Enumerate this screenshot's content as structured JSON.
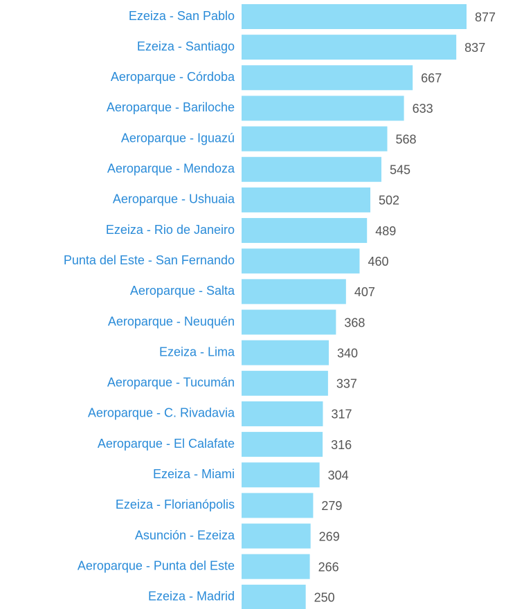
{
  "chart_data": {
    "type": "bar",
    "orientation": "horizontal",
    "color": "#8fdcf7",
    "categories": [
      "Ezeiza - San Pablo",
      "Ezeiza - Santiago",
      "Aeroparque - Córdoba",
      "Aeroparque - Bariloche",
      "Aeroparque - Iguazú",
      "Aeroparque - Mendoza",
      "Aeroparque - Ushuaia",
      "Ezeiza - Rio de Janeiro",
      "Punta del Este - San Fernando",
      "Aeroparque - Salta",
      "Aeroparque - Neuquén",
      "Ezeiza - Lima",
      "Aeroparque - Tucumán",
      "Aeroparque - C. Rivadavia",
      "Aeroparque - El Calafate",
      "Ezeiza - Miami",
      "Ezeiza - Florianópolis",
      "Asunción - Ezeiza",
      "Aeroparque - Punta del Este",
      "Ezeiza - Madrid"
    ],
    "values": [
      877,
      837,
      667,
      633,
      568,
      545,
      502,
      489,
      460,
      407,
      368,
      340,
      337,
      317,
      316,
      304,
      279,
      269,
      266,
      250
    ]
  }
}
